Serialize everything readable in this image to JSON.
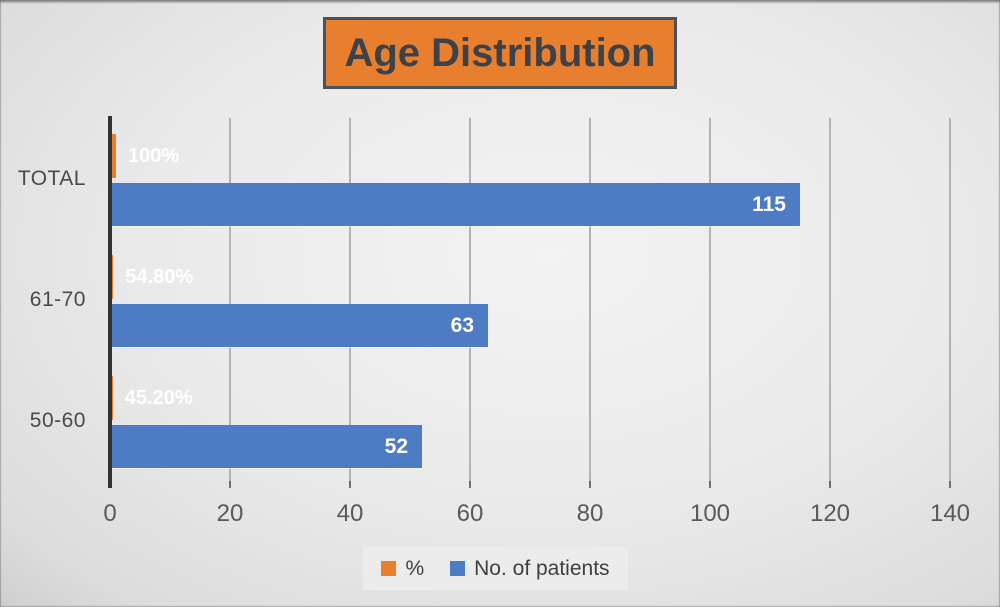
{
  "title_box": {
    "text": "Age Distribution",
    "fill_color": "#e87f2f",
    "border_color": "#4c525a",
    "text_color": "#3d4249"
  },
  "chart_data": {
    "type": "bar",
    "orientation": "horizontal",
    "title": "Age Distribution",
    "categories": [
      "TOTAL",
      "61-70",
      "50-60"
    ],
    "series": [
      {
        "name": "%",
        "color": "#e87f2f",
        "values": [
          1.0,
          0.548,
          0.452
        ],
        "data_labels": [
          "100%",
          "54.80%",
          "45.20%"
        ],
        "data_label_position": "outside-end",
        "data_label_color": "#ffffff"
      },
      {
        "name": "No. of patients",
        "color": "#4d7cc5",
        "values": [
          115,
          63,
          52
        ],
        "data_labels": [
          "115",
          "63",
          "52"
        ],
        "data_label_position": "inside-end",
        "data_label_color": "#ffffff"
      }
    ],
    "x_axis": {
      "min": 0,
      "max": 140,
      "tick_interval": 20,
      "tick_labels": [
        "0",
        "20",
        "40",
        "60",
        "80",
        "100",
        "120",
        "140"
      ]
    },
    "legend": {
      "position": "bottom",
      "entries": [
        "%",
        "No. of patients"
      ]
    },
    "grid": "vertical-major",
    "gridline_color": "#b3b3b3",
    "axis_line_color": "#333333",
    "tick_label_color": "#595959",
    "category_label_color": "#4a4a4a"
  }
}
